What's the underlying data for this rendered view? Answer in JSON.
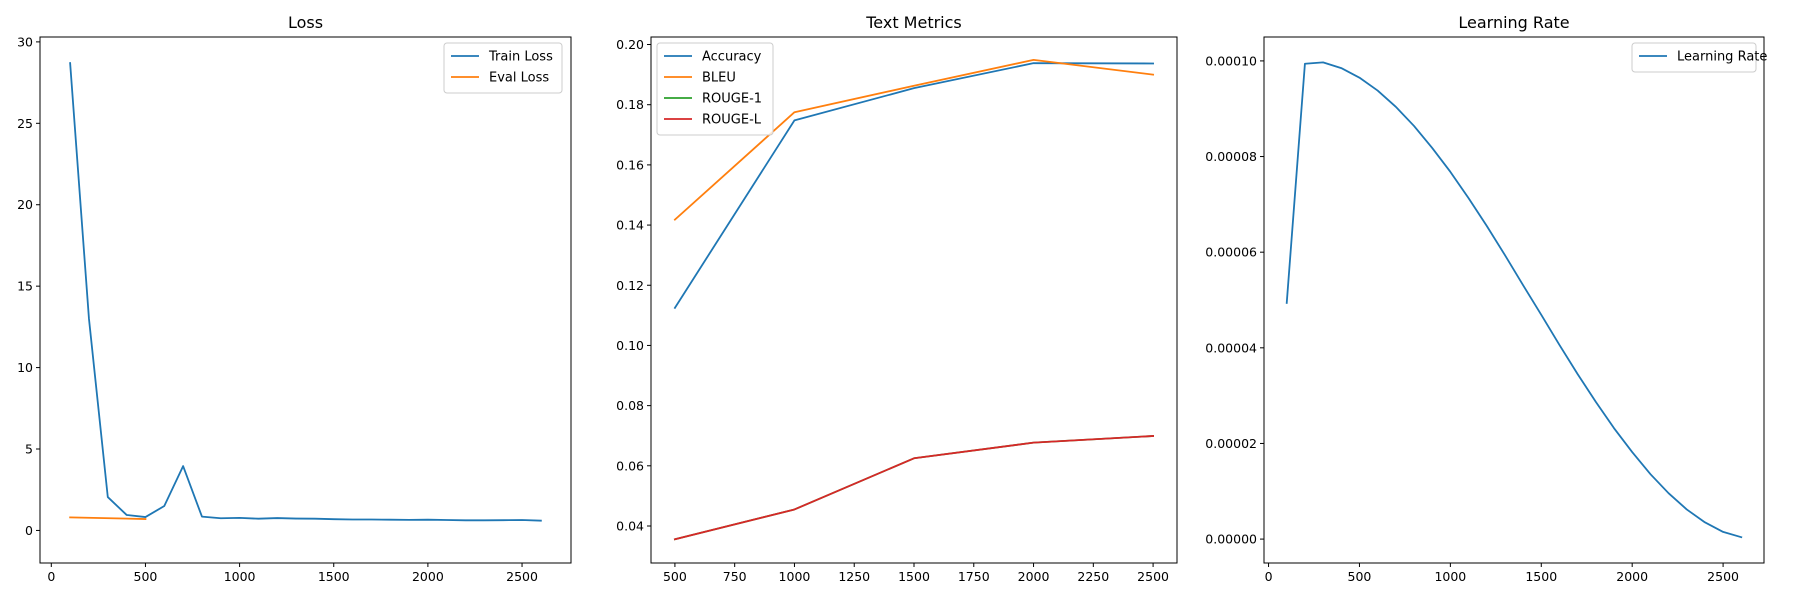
{
  "chart_data": [
    {
      "type": "line",
      "title": "Loss",
      "xlim": [
        -60,
        2760
      ],
      "ylim": [
        -2,
        30.3
      ],
      "xticks": [
        0,
        500,
        1000,
        1500,
        2000,
        2500
      ],
      "xtick_labels": [
        "0",
        "500",
        "1000",
        "1500",
        "2000",
        "2500"
      ],
      "yticks": [
        0,
        5,
        10,
        15,
        20,
        25,
        30
      ],
      "ytick_labels": [
        "0",
        "5",
        "10",
        "15",
        "20",
        "25",
        "30"
      ],
      "grid": false,
      "legend_position": "top-right",
      "series": [
        {
          "name": "Train Loss",
          "color": "#1f77b4",
          "x": [
            100,
            200,
            300,
            400,
            500,
            600,
            700,
            800,
            900,
            1000,
            1100,
            1200,
            1300,
            1400,
            1500,
            1600,
            1700,
            1800,
            1900,
            2000,
            2100,
            2200,
            2300,
            2400,
            2500,
            2600
          ],
          "y": [
            28.7,
            13.0,
            2.05,
            0.95,
            0.82,
            1.5,
            3.95,
            0.85,
            0.75,
            0.77,
            0.72,
            0.76,
            0.73,
            0.72,
            0.69,
            0.67,
            0.67,
            0.66,
            0.65,
            0.66,
            0.64,
            0.62,
            0.62,
            0.63,
            0.64,
            0.6
          ]
        },
        {
          "name": "Eval Loss",
          "color": "#ff7f0e",
          "x": [
            100,
            500
          ],
          "y": [
            0.8,
            0.7
          ]
        }
      ]
    },
    {
      "type": "line",
      "title": "Text Metrics",
      "xlim": [
        400,
        2600
      ],
      "ylim": [
        0.0277,
        0.2025
      ],
      "xticks": [
        500,
        750,
        1000,
        1250,
        1500,
        1750,
        2000,
        2250,
        2500
      ],
      "xtick_labels": [
        "500",
        "750",
        "1000",
        "1250",
        "1500",
        "1750",
        "2000",
        "2250",
        "2500"
      ],
      "yticks": [
        0.04,
        0.06,
        0.08,
        0.1,
        0.12,
        0.14,
        0.16,
        0.18,
        0.2
      ],
      "ytick_labels": [
        "0.04",
        "0.06",
        "0.08",
        "0.10",
        "0.12",
        "0.14",
        "0.16",
        "0.18",
        "0.20"
      ],
      "grid": false,
      "legend_position": "top-left",
      "series": [
        {
          "name": "Accuracy",
          "color": "#1f77b4",
          "x": [
            500,
            1000,
            1500,
            2000,
            2500
          ],
          "y": [
            0.1125,
            0.1748,
            0.1855,
            0.1938,
            0.1937
          ]
        },
        {
          "name": "BLEU",
          "color": "#ff7f0e",
          "x": [
            500,
            1000,
            1500,
            2000,
            2500
          ],
          "y": [
            0.1418,
            0.1775,
            0.1863,
            0.1949,
            0.19
          ]
        },
        {
          "name": "ROUGE-1",
          "color": "#2ca02c",
          "x": [
            500,
            1000,
            1500,
            2000,
            2500
          ],
          "y": [
            0.0356,
            0.0455,
            0.0625,
            0.0677,
            0.0699
          ]
        },
        {
          "name": "ROUGE-L",
          "color": "#d62728",
          "x": [
            500,
            1000,
            1500,
            2000,
            2500
          ],
          "y": [
            0.0356,
            0.0455,
            0.0625,
            0.0677,
            0.0699
          ]
        }
      ]
    },
    {
      "type": "line",
      "title": "Learning Rate",
      "xlim": [
        -25,
        2725
      ],
      "ylim": [
        -5e-06,
        0.000105
      ],
      "xticks": [
        0,
        500,
        1000,
        1500,
        2000,
        2500
      ],
      "xtick_labels": [
        "0",
        "500",
        "1000",
        "1500",
        "2000",
        "2500"
      ],
      "yticks": [
        0,
        2e-05,
        4e-05,
        6e-05,
        8e-05,
        0.0001
      ],
      "ytick_labels": [
        "0.00000",
        "0.00002",
        "0.00004",
        "0.00006",
        "0.00008",
        "0.00010"
      ],
      "grid": false,
      "legend_position": "top-right",
      "series": [
        {
          "name": "Learning Rate",
          "color": "#1f77b4",
          "x": [
            100,
            200,
            300,
            400,
            500,
            600,
            700,
            800,
            900,
            1000,
            1100,
            1200,
            1300,
            1400,
            1500,
            1600,
            1700,
            1800,
            1900,
            2000,
            2100,
            2200,
            2300,
            2400,
            2500,
            2600
          ],
          "y": [
            4.94e-05,
            9.94e-05,
            9.97e-05,
            9.85e-05,
            9.65e-05,
            9.38e-05,
            9.04e-05,
            8.64e-05,
            8.18e-05,
            7.68e-05,
            7.13e-05,
            6.55e-05,
            5.94e-05,
            5.31e-05,
            4.69e-05,
            4.06e-05,
            3.45e-05,
            2.87e-05,
            2.32e-05,
            1.82e-05,
            1.36e-05,
            9.6e-06,
            6.2e-06,
            3.5e-06,
            1.5e-06,
            4e-07
          ]
        }
      ]
    }
  ]
}
